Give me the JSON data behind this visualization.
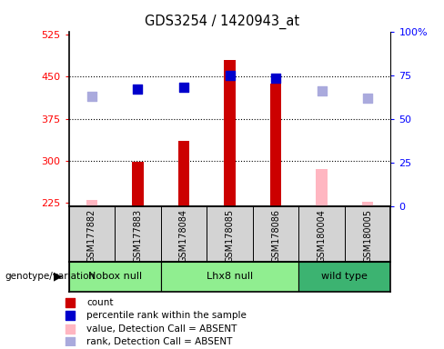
{
  "title": "GDS3254 / 1420943_at",
  "samples": [
    "GSM177882",
    "GSM177883",
    "GSM178084",
    "GSM178085",
    "GSM178086",
    "GSM180004",
    "GSM180005"
  ],
  "count_values": [
    null,
    298,
    336,
    480,
    438,
    null,
    null
  ],
  "count_absent_values": [
    230,
    null,
    null,
    null,
    null,
    285,
    227
  ],
  "percentile_values": [
    null,
    67,
    68,
    75,
    73,
    null,
    null
  ],
  "percentile_absent_values": [
    63,
    null,
    null,
    null,
    null,
    66,
    62
  ],
  "ylim_left": [
    220,
    530
  ],
  "ylim_right": [
    0,
    100
  ],
  "yticks_left": [
    225,
    300,
    375,
    450,
    525
  ],
  "yticks_right": [
    0,
    25,
    50,
    75,
    100
  ],
  "bar_color": "#cc0000",
  "bar_absent_color": "#ffb6c1",
  "dot_color": "#0000cc",
  "dot_absent_color": "#aaaadd",
  "legend_items": [
    {
      "label": "count",
      "color": "#cc0000"
    },
    {
      "label": "percentile rank within the sample",
      "color": "#0000cc"
    },
    {
      "label": "value, Detection Call = ABSENT",
      "color": "#ffb6c1"
    },
    {
      "label": "rank, Detection Call = ABSENT",
      "color": "#aaaadd"
    }
  ],
  "groups": [
    {
      "name": "Nobox null",
      "color": "#90ee90",
      "start": 0,
      "end": 1
    },
    {
      "name": "Lhx8 null",
      "color": "#90ee90",
      "start": 2,
      "end": 4
    },
    {
      "name": "wild type",
      "color": "#3cb371",
      "start": 5,
      "end": 6
    }
  ],
  "bar_width": 0.25,
  "dot_size": 45,
  "grid_yticks": [
    300,
    375,
    450
  ]
}
